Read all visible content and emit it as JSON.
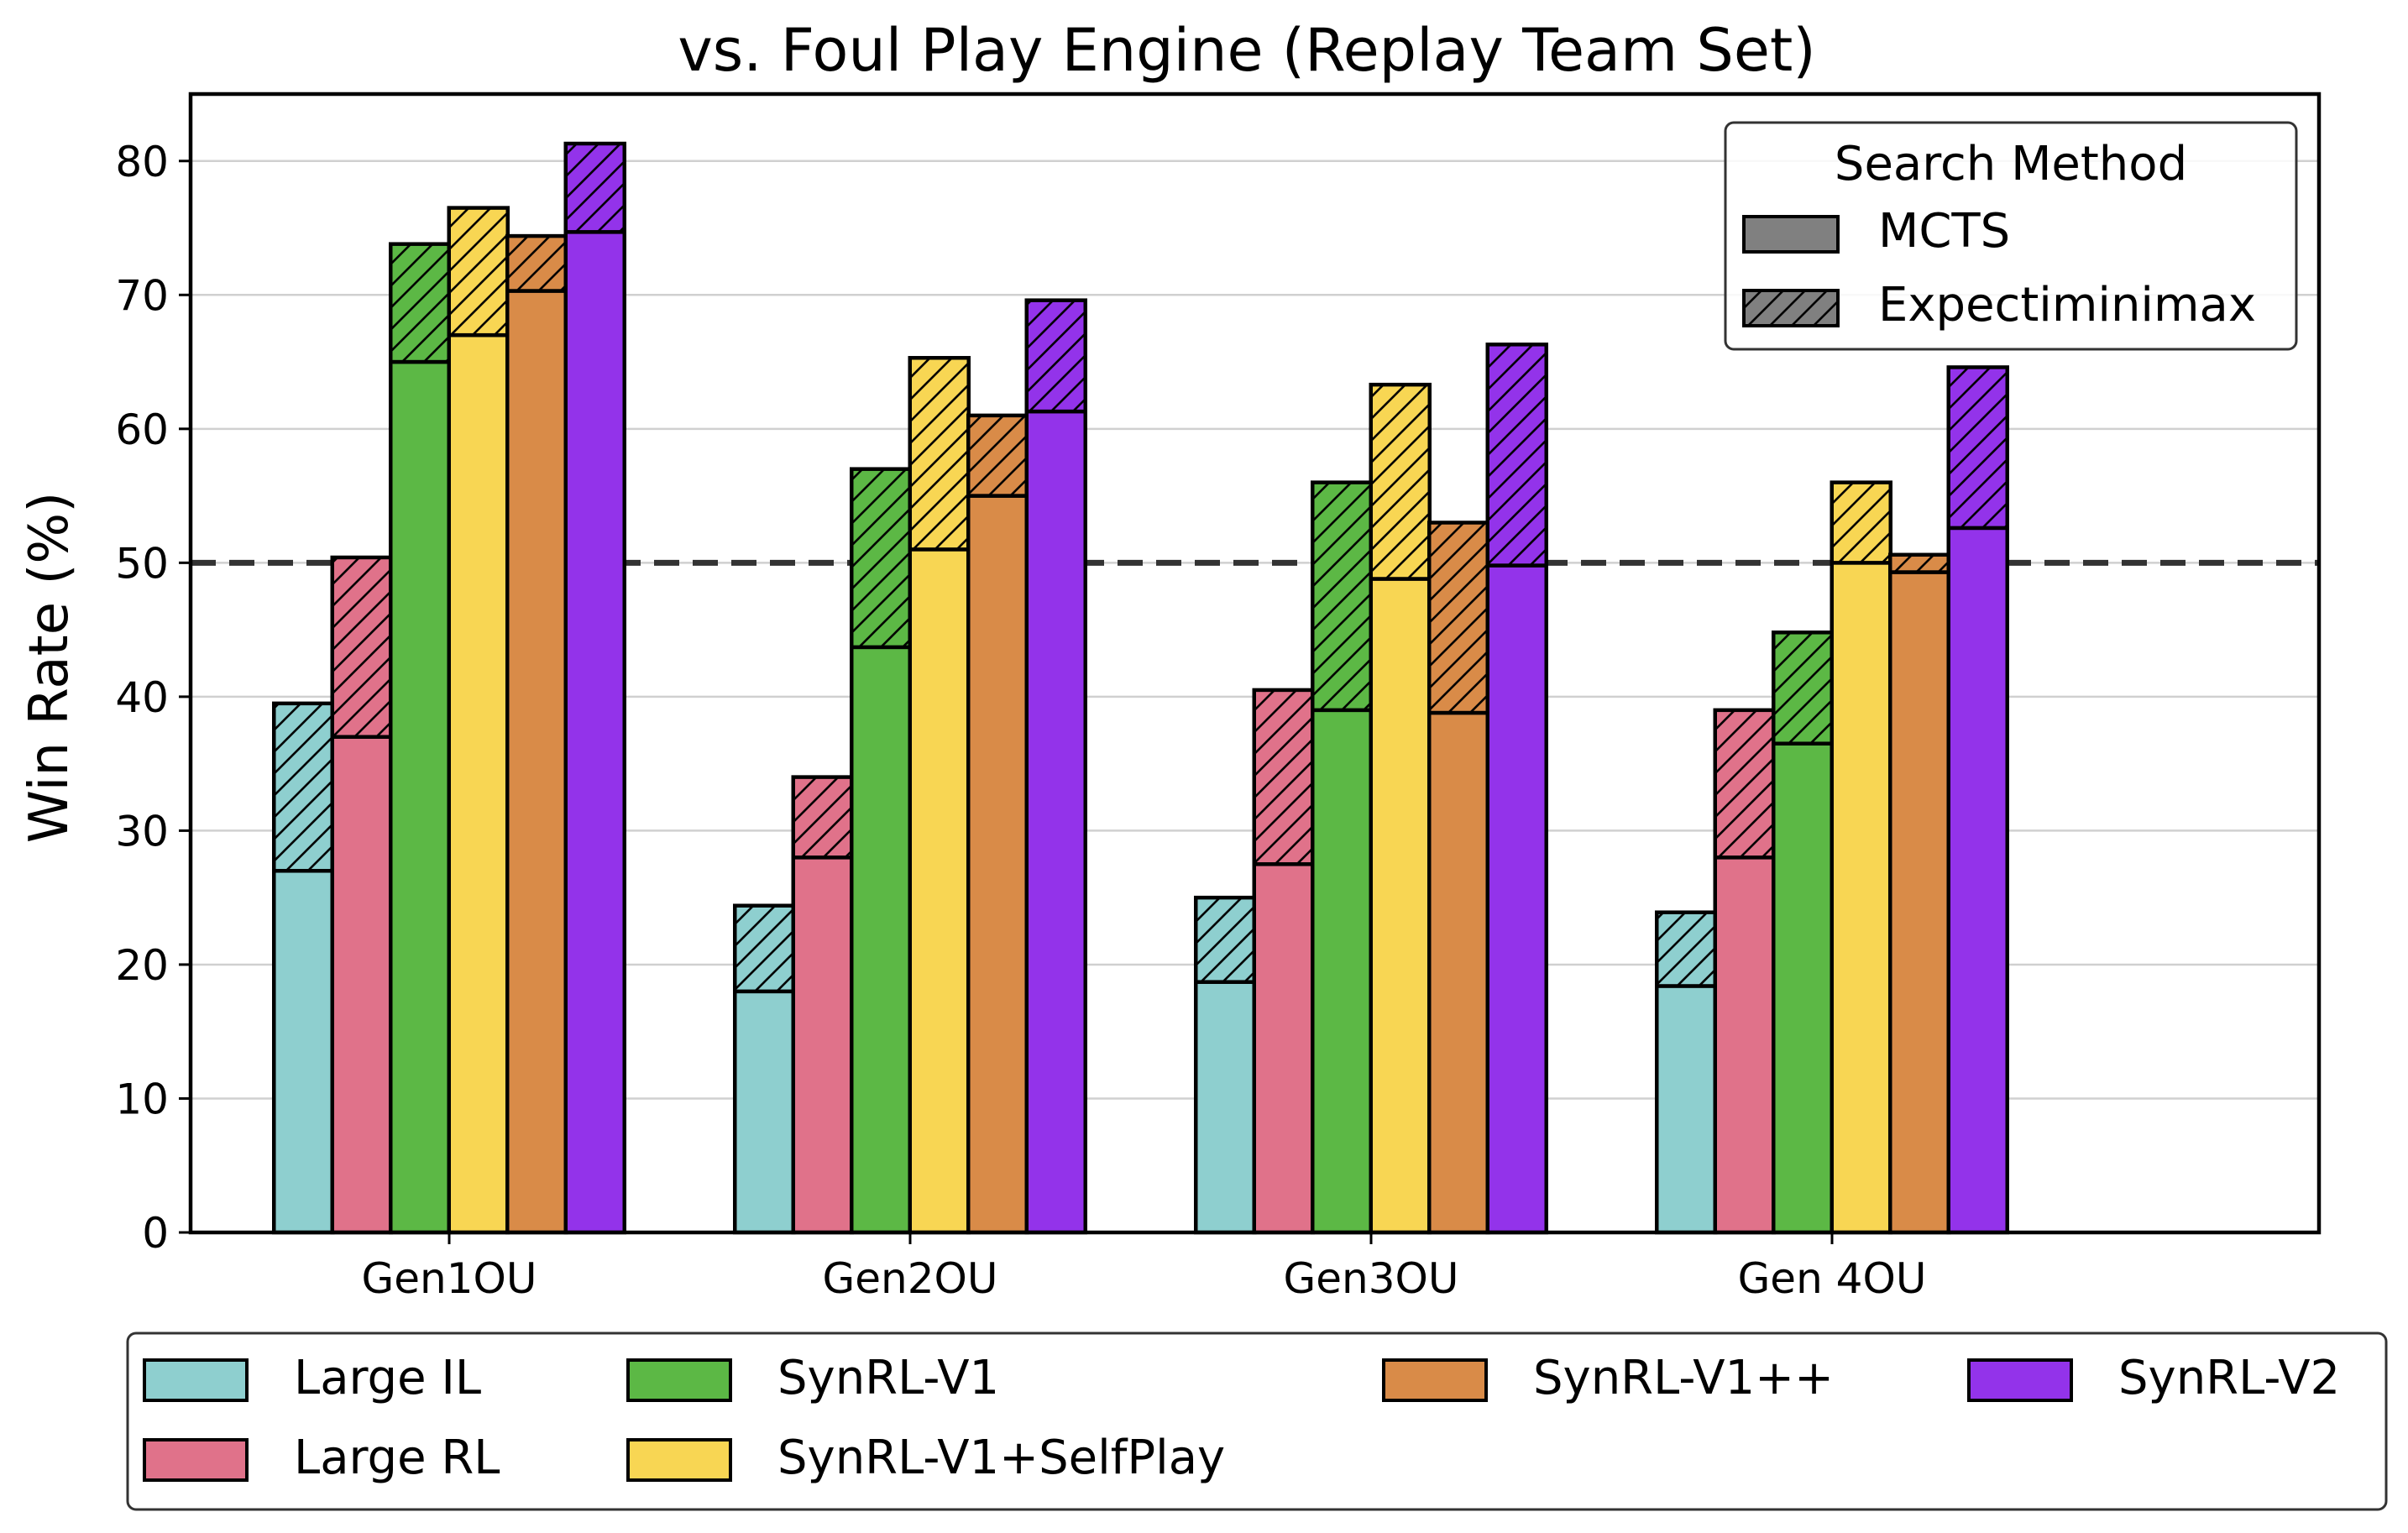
{
  "chart_data": {
    "type": "bar",
    "title": "vs. Foul Play Engine (Replay Team Set)",
    "xlabel": "",
    "ylabel": "Win Rate (%)",
    "ylim": [
      0,
      85
    ],
    "yticks": [
      "0",
      "10",
      "20",
      "30",
      "40",
      "50",
      "60",
      "70",
      "80"
    ],
    "reference_line": 50,
    "grid": "horizontal",
    "categories": [
      "Gen1OU",
      "Gen2OU",
      "Gen3OU",
      "Gen 4OU"
    ],
    "series": [
      {
        "name": "Large IL",
        "color": "#8ecfcf",
        "mcts": [
          27,
          18,
          18.7,
          18.4
        ],
        "expectiminimax": [
          39.5,
          24.4,
          25,
          23.9
        ]
      },
      {
        "name": "Large RL",
        "color": "#e0728a",
        "mcts": [
          37,
          28,
          27.5,
          28
        ],
        "expectiminimax": [
          50.4,
          34,
          40.5,
          39
        ]
      },
      {
        "name": "SynRL-V1",
        "color": "#5cb845",
        "mcts": [
          65,
          43.7,
          39,
          36.5
        ],
        "expectiminimax": [
          73.8,
          57,
          56,
          44.8
        ]
      },
      {
        "name": "SynRL-V1+SelfPlay",
        "color": "#f8d653",
        "mcts": [
          67,
          51,
          48.8,
          50
        ],
        "expectiminimax": [
          76.5,
          65.3,
          63.3,
          56
        ]
      },
      {
        "name": "SynRL-V1++",
        "color": "#d98b48",
        "mcts": [
          70.3,
          55,
          38.8,
          49.3
        ],
        "expectiminimax": [
          74.4,
          61,
          53,
          50.6
        ]
      },
      {
        "name": "SynRL-V2",
        "color": "#9333ea",
        "mcts": [
          74.7,
          61.3,
          49.8,
          52.6
        ],
        "expectiminimax": [
          81.3,
          69.6,
          66.3,
          64.6
        ]
      }
    ],
    "search_legend": {
      "title": "Search Method",
      "items": [
        {
          "name": "MCTS",
          "pattern": "solid"
        },
        {
          "name": "Expectiminimax",
          "pattern": "hatched"
        }
      ],
      "placement": "top-right"
    },
    "series_legend_placement": "bottom-outside"
  }
}
